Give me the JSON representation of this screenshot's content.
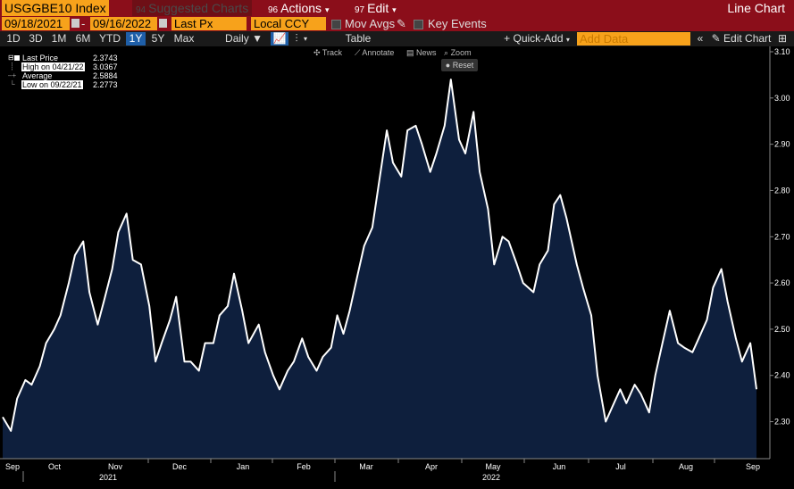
{
  "header": {
    "ticker": "USGGBE10 Index",
    "suggested_num": "94",
    "suggested_label": "Suggested Charts",
    "actions_num": "96",
    "actions_label": "Actions",
    "edit_num": "97",
    "edit_label": "Edit",
    "title": "Line Chart"
  },
  "settings": {
    "start_date": "09/18/2021",
    "end_date": "09/16/2022",
    "field": "Last Px",
    "currency": "Local CCY",
    "mov_avgs": "Mov Avgs",
    "key_events": "Key Events"
  },
  "periods": [
    "1D",
    "3D",
    "1M",
    "6M",
    "YTD",
    "1Y",
    "5Y",
    "Max"
  ],
  "active_period": "1Y",
  "toolbar": {
    "frequency": "Daily",
    "table": "Table",
    "quick_add": "Quick-Add",
    "add_data_placeholder": "Add Data",
    "edit_chart": "Edit Chart"
  },
  "tools": {
    "track": "Track",
    "annotate": "Annotate",
    "news": "News",
    "zoom": "Zoom",
    "reset": "Reset"
  },
  "legend": {
    "last_price_label": "Last Price",
    "last_price": "2.3743",
    "high_label": "High on 04/21/22",
    "high": "3.0367",
    "average_label": "Average",
    "average": "2.5884",
    "low_label": "Low on 09/22/21",
    "low": "2.2773"
  },
  "chart_data": {
    "type": "area",
    "x_labels": [
      "Sep",
      "Oct",
      "Nov",
      "Dec",
      "Jan",
      "Feb",
      "Mar",
      "Apr",
      "May",
      "Jun",
      "Jul",
      "Aug",
      "Sep"
    ],
    "year_labels": [
      "2021",
      "2022"
    ],
    "yticks": [
      "3.10",
      "3.00",
      "2.90",
      "2.80",
      "2.70",
      "2.60",
      "2.50",
      "2.40",
      "2.30"
    ],
    "ylim": [
      2.22,
      3.1
    ],
    "x_start": "2021-09-16",
    "x_end": "2022-09-16",
    "points": [
      [
        "2021-09-16",
        2.31
      ],
      [
        "2021-09-20",
        2.28
      ],
      [
        "2021-09-23",
        2.35
      ],
      [
        "2021-09-27",
        2.39
      ],
      [
        "2021-09-30",
        2.38
      ],
      [
        "2021-10-04",
        2.42
      ],
      [
        "2021-10-07",
        2.47
      ],
      [
        "2021-10-11",
        2.5
      ],
      [
        "2021-10-14",
        2.53
      ],
      [
        "2021-10-18",
        2.6
      ],
      [
        "2021-10-21",
        2.66
      ],
      [
        "2021-10-25",
        2.69
      ],
      [
        "2021-10-28",
        2.58
      ],
      [
        "2021-11-01",
        2.51
      ],
      [
        "2021-11-04",
        2.56
      ],
      [
        "2021-11-08",
        2.63
      ],
      [
        "2021-11-11",
        2.71
      ],
      [
        "2021-11-15",
        2.75
      ],
      [
        "2021-11-18",
        2.65
      ],
      [
        "2021-11-22",
        2.64
      ],
      [
        "2021-11-26",
        2.55
      ],
      [
        "2021-11-29",
        2.43
      ],
      [
        "2021-12-02",
        2.47
      ],
      [
        "2021-12-06",
        2.52
      ],
      [
        "2021-12-09",
        2.57
      ],
      [
        "2021-12-13",
        2.43
      ],
      [
        "2021-12-16",
        2.43
      ],
      [
        "2021-12-20",
        2.41
      ],
      [
        "2021-12-23",
        2.47
      ],
      [
        "2021-12-27",
        2.47
      ],
      [
        "2021-12-30",
        2.53
      ],
      [
        "2022-01-03",
        2.55
      ],
      [
        "2022-01-06",
        2.62
      ],
      [
        "2022-01-10",
        2.54
      ],
      [
        "2022-01-13",
        2.47
      ],
      [
        "2022-01-18",
        2.51
      ],
      [
        "2022-01-21",
        2.45
      ],
      [
        "2022-01-25",
        2.4
      ],
      [
        "2022-01-28",
        2.37
      ],
      [
        "2022-02-01",
        2.41
      ],
      [
        "2022-02-04",
        2.43
      ],
      [
        "2022-02-08",
        2.48
      ],
      [
        "2022-02-11",
        2.44
      ],
      [
        "2022-02-15",
        2.41
      ],
      [
        "2022-02-18",
        2.44
      ],
      [
        "2022-02-22",
        2.46
      ],
      [
        "2022-02-25",
        2.53
      ],
      [
        "2022-02-28",
        2.49
      ],
      [
        "2022-03-03",
        2.54
      ],
      [
        "2022-03-07",
        2.62
      ],
      [
        "2022-03-10",
        2.68
      ],
      [
        "2022-03-14",
        2.72
      ],
      [
        "2022-03-17",
        2.81
      ],
      [
        "2022-03-21",
        2.93
      ],
      [
        "2022-03-24",
        2.86
      ],
      [
        "2022-03-28",
        2.83
      ],
      [
        "2022-03-31",
        2.93
      ],
      [
        "2022-04-04",
        2.94
      ],
      [
        "2022-04-07",
        2.9
      ],
      [
        "2022-04-11",
        2.84
      ],
      [
        "2022-04-14",
        2.88
      ],
      [
        "2022-04-18",
        2.94
      ],
      [
        "2022-04-21",
        3.04
      ],
      [
        "2022-04-25",
        2.91
      ],
      [
        "2022-04-28",
        2.88
      ],
      [
        "2022-05-02",
        2.97
      ],
      [
        "2022-05-05",
        2.84
      ],
      [
        "2022-05-09",
        2.76
      ],
      [
        "2022-05-12",
        2.64
      ],
      [
        "2022-05-16",
        2.7
      ],
      [
        "2022-05-19",
        2.69
      ],
      [
        "2022-05-23",
        2.64
      ],
      [
        "2022-05-26",
        2.6
      ],
      [
        "2022-05-31",
        2.58
      ],
      [
        "2022-06-03",
        2.64
      ],
      [
        "2022-06-07",
        2.67
      ],
      [
        "2022-06-10",
        2.77
      ],
      [
        "2022-06-13",
        2.79
      ],
      [
        "2022-06-16",
        2.74
      ],
      [
        "2022-06-21",
        2.64
      ],
      [
        "2022-06-24",
        2.59
      ],
      [
        "2022-06-28",
        2.53
      ],
      [
        "2022-07-01",
        2.4
      ],
      [
        "2022-07-05",
        2.3
      ],
      [
        "2022-07-08",
        2.33
      ],
      [
        "2022-07-12",
        2.37
      ],
      [
        "2022-07-15",
        2.34
      ],
      [
        "2022-07-19",
        2.38
      ],
      [
        "2022-07-22",
        2.36
      ],
      [
        "2022-07-26",
        2.32
      ],
      [
        "2022-07-29",
        2.4
      ],
      [
        "2022-08-02",
        2.48
      ],
      [
        "2022-08-05",
        2.54
      ],
      [
        "2022-08-09",
        2.47
      ],
      [
        "2022-08-12",
        2.46
      ],
      [
        "2022-08-16",
        2.45
      ],
      [
        "2022-08-19",
        2.48
      ],
      [
        "2022-08-23",
        2.52
      ],
      [
        "2022-08-26",
        2.59
      ],
      [
        "2022-08-30",
        2.63
      ],
      [
        "2022-09-02",
        2.56
      ],
      [
        "2022-09-06",
        2.48
      ],
      [
        "2022-09-09",
        2.43
      ],
      [
        "2022-09-13",
        2.47
      ],
      [
        "2022-09-16",
        2.37
      ]
    ]
  },
  "colors": {
    "header_bg": "#8b0e1a",
    "ticker_bg": "#f7a21b",
    "line": "#ffffff",
    "fill": "#0e1f3d"
  }
}
